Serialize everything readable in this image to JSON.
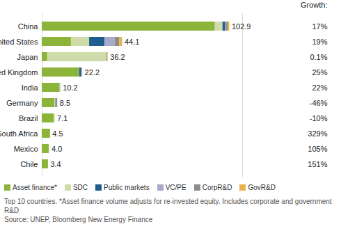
{
  "chart_data": {
    "type": "bar",
    "orientation": "horizontal",
    "stacked": true,
    "categories": [
      "China",
      "United States",
      "Japan",
      "United Kingdom",
      "India",
      "Germany",
      "Brazil",
      "South Africa",
      "Mexico",
      "Chile"
    ],
    "series": [
      {
        "name": "Asset finance*",
        "color": "#8cb43a",
        "values": [
          95.0,
          16.0,
          3.0,
          20.3,
          9.8,
          7.0,
          6.6,
          4.5,
          3.8,
          3.4
        ]
      },
      {
        "name": "SDC",
        "color": "#cfdcaa",
        "values": [
          4.2,
          10.0,
          32.6,
          0.2,
          0.3,
          0.3,
          0.4,
          0,
          0.2,
          0
        ]
      },
      {
        "name": "Public markets",
        "color": "#1f5d8e",
        "values": [
          1.5,
          8.5,
          0.1,
          1.2,
          0.1,
          0.2,
          0,
          0,
          0,
          0
        ]
      },
      {
        "name": "VC/PE",
        "color": "#a8aacb",
        "values": [
          0.5,
          5.5,
          0,
          0.2,
          0,
          0.2,
          0,
          0,
          0,
          0
        ]
      },
      {
        "name": "CorpR&D",
        "color": "#8d8d8d",
        "values": [
          0.8,
          2.5,
          0.3,
          0.2,
          0,
          0.8,
          0,
          0,
          0,
          0
        ]
      },
      {
        "name": "GovR&D",
        "color": "#e9b24c",
        "values": [
          0.9,
          1.6,
          0.2,
          0.1,
          0,
          0,
          0.1,
          0,
          0,
          0
        ]
      }
    ],
    "totals": {
      "values": [
        102.9,
        44.1,
        36.2,
        22.2,
        10.2,
        8.5,
        7.1,
        4.5,
        4.0,
        3.4
      ],
      "value_labels": [
        "102.9",
        "44.1",
        "36.2",
        "22.2",
        "10.2",
        "8.5",
        "7.1",
        "4.5",
        "4.0",
        "3.4"
      ]
    },
    "growth": {
      "title": "Growth:",
      "values": [
        17,
        19,
        0.1,
        25,
        22,
        -46,
        -10,
        329,
        105,
        151
      ],
      "value_labels": [
        "17%",
        "19%",
        "0.1%",
        "25%",
        "22%",
        "-46%",
        "-10%",
        "329%",
        "105%",
        "151%"
      ]
    },
    "xlim": [
      0,
      110
    ],
    "xticks": [
      0,
      110
    ],
    "tick_labels": "y",
    "legend": "bottom",
    "notes": [
      "Top 10 countries. *Asset finance volume adjusts for re-invested equity. Includes corporate and government R&D",
      "Source: UNEP, Bloomberg New Energy Finance"
    ]
  }
}
